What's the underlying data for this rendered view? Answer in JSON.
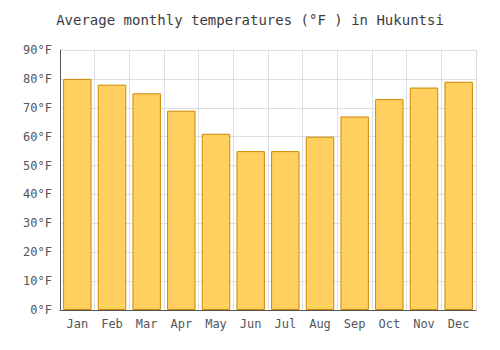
{
  "chart_data": {
    "type": "bar",
    "title": "Average monthly temperatures (°F ) in Hukuntsi",
    "categories": [
      "Jan",
      "Feb",
      "Mar",
      "Apr",
      "May",
      "Jun",
      "Jul",
      "Aug",
      "Sep",
      "Oct",
      "Nov",
      "Dec"
    ],
    "values": [
      80,
      78,
      75,
      69,
      61,
      55,
      55,
      60,
      67,
      73,
      77,
      79
    ],
    "color": "#FFD060",
    "ylim": [
      0,
      90
    ],
    "yticks": [
      {
        "value": 0,
        "label": "0°F"
      },
      {
        "value": 10,
        "label": "10°F"
      },
      {
        "value": 20,
        "label": "20°F"
      },
      {
        "value": 30,
        "label": "30°F"
      },
      {
        "value": 40,
        "label": "40°F"
      },
      {
        "value": 50,
        "label": "50°F"
      },
      {
        "value": 60,
        "label": "60°F"
      },
      {
        "value": 70,
        "label": "70°F"
      },
      {
        "value": 80,
        "label": "80°F"
      },
      {
        "value": 90,
        "label": "90°F"
      }
    ],
    "grid": true
  }
}
